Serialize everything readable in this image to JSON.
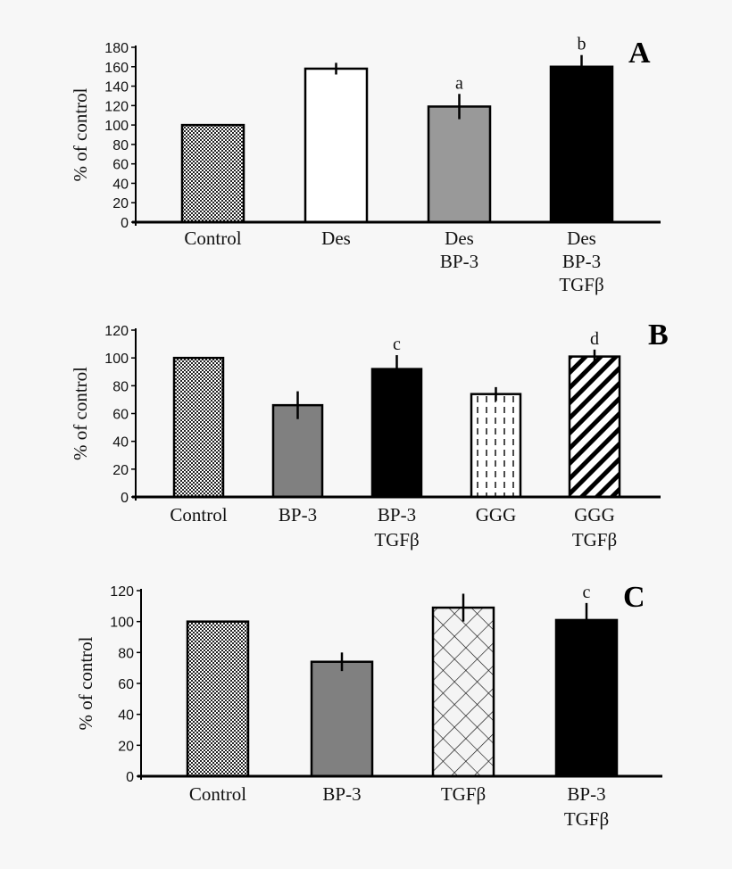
{
  "chart_data": [
    {
      "type": "bar",
      "panel_label": "A",
      "ylabel": "% of control",
      "ylim": [
        0,
        180
      ],
      "yticks": [
        0,
        20,
        40,
        60,
        80,
        100,
        120,
        140,
        160,
        180
      ],
      "categories": [
        [
          "Control"
        ],
        [
          "Des"
        ],
        [
          "Des",
          "BP-3"
        ],
        [
          "Des",
          "BP-3",
          "TGFβ"
        ]
      ],
      "values": [
        100,
        158,
        119,
        160
      ],
      "errors": [
        0,
        6,
        13,
        12
      ],
      "annotations": [
        "",
        "",
        "a",
        "b"
      ],
      "fills": [
        "checker",
        "#ffffff",
        "#999999",
        "#000000"
      ]
    },
    {
      "type": "bar",
      "panel_label": "B",
      "ylabel": "% of control",
      "ylim": [
        0,
        120
      ],
      "yticks": [
        0,
        20,
        40,
        60,
        80,
        100,
        120
      ],
      "categories": [
        [
          "Control"
        ],
        [
          "BP-3"
        ],
        [
          "BP-3",
          "TGFβ"
        ],
        [
          "GGG"
        ],
        [
          "GGG",
          "TGFβ"
        ]
      ],
      "values": [
        100,
        66,
        92,
        74,
        101
      ],
      "errors": [
        0,
        10,
        10,
        5,
        5
      ],
      "annotations": [
        "",
        "",
        "c",
        "",
        "d"
      ],
      "fills": [
        "checker",
        "#808080",
        "#000000",
        "vdash",
        "diagonal"
      ]
    },
    {
      "type": "bar",
      "panel_label": "C",
      "ylabel": "% of control",
      "ylim": [
        0,
        120
      ],
      "yticks": [
        0,
        20,
        40,
        60,
        80,
        100,
        120
      ],
      "categories": [
        [
          "Control"
        ],
        [
          "BP-3"
        ],
        [
          "TGFβ"
        ],
        [
          "BP-3",
          "TGFβ"
        ]
      ],
      "values": [
        100,
        74,
        109,
        101
      ],
      "errors": [
        0,
        6,
        9,
        11
      ],
      "annotations": [
        "",
        "",
        "",
        "c"
      ],
      "fills": [
        "checker",
        "#808080",
        "lattice",
        "#000000"
      ]
    }
  ]
}
